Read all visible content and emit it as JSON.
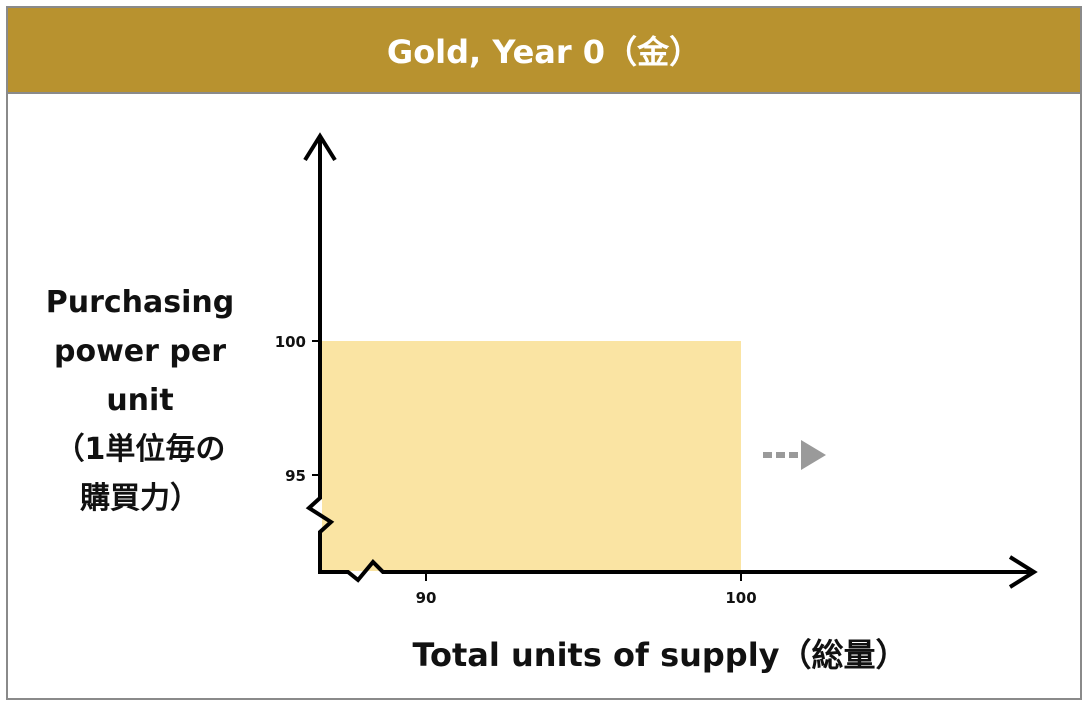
{
  "title": "Gold, Year 0（金）",
  "y_axis": {
    "label_lines": [
      "Purchasing",
      "power per",
      "unit",
      "（1単位毎の",
      "購買力）"
    ]
  },
  "x_axis": {
    "label": "Total units of supply（総量）"
  },
  "chart_data": {
    "type": "area",
    "x_ticks": [
      90,
      100
    ],
    "y_ticks": [
      100,
      95
    ],
    "rectangle": {
      "x_end": 100,
      "y_top": 100
    },
    "colors": {
      "header": "#B8922F",
      "fill": "#FAE4A3",
      "arrow": "#9A9A9A",
      "axis": "#000000"
    }
  }
}
